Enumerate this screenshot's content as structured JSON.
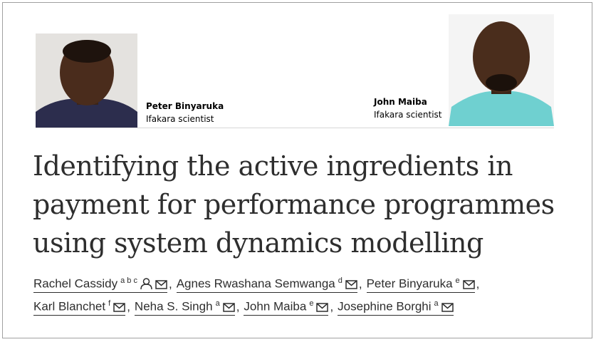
{
  "people": [
    {
      "name": "Peter Binyaruka",
      "role": "Ifakara scientist"
    },
    {
      "name": "John Maiba",
      "role": "Ifakara scientist"
    }
  ],
  "title": [
    "Identifying the active ingredients in",
    "payment for performance programmes",
    "using system dynamics modelling"
  ],
  "author_lines": [
    [
      {
        "name": "Rachel Cassidy",
        "affiliations": "a b c",
        "profile": true,
        "separator": ","
      },
      {
        "name": "Agnes Rwashana Semwanga",
        "affiliations": "d",
        "separator": ","
      },
      {
        "name": "Peter Binyaruka",
        "affiliations": "e",
        "separator": ","
      }
    ],
    [
      {
        "name": "Karl Blanchet",
        "affiliations": "f",
        "separator": ","
      },
      {
        "name": "Neha S. Singh",
        "affiliations": "a",
        "separator": ","
      },
      {
        "name": "John Maiba",
        "affiliations": "e",
        "separator": ","
      },
      {
        "name": "Josephine Borghi",
        "affiliations": "a"
      }
    ]
  ]
}
